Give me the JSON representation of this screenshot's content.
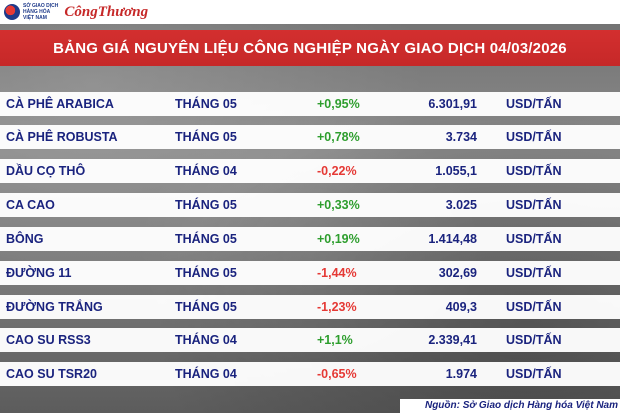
{
  "header": {
    "logo_org_lines": [
      "SỞ GIAO DỊCH",
      "HÀNG HÓA",
      "VIỆT NAM"
    ],
    "logo_brand": "CôngThương"
  },
  "title": "BẢNG GIÁ NGUYÊN LIỆU CÔNG NGHIỆP NGÀY GIAO DỊCH 04/03/2026",
  "rows": [
    {
      "name": "CÀ PHÊ ARABICA",
      "month": "THÁNG 05",
      "change": "+0,95%",
      "direction": "up",
      "price": "6.301,91",
      "unit": "USD/TẤN"
    },
    {
      "name": "CÀ PHÊ ROBUSTA",
      "month": "THÁNG 05",
      "change": "+0,78%",
      "direction": "up",
      "price": "3.734",
      "unit": "USD/TẤN"
    },
    {
      "name": "DẦU CỌ THÔ",
      "month": "THÁNG 04",
      "change": "-0,22%",
      "direction": "down",
      "price": "1.055,1",
      "unit": "USD/TẤN"
    },
    {
      "name": "CA CAO",
      "month": "THÁNG 05",
      "change": "+0,33%",
      "direction": "up",
      "price": "3.025",
      "unit": "USD/TẤN"
    },
    {
      "name": "BÔNG",
      "month": "THÁNG 05",
      "change": "+0,19%",
      "direction": "up",
      "price": "1.414,48",
      "unit": "USD/TẤN"
    },
    {
      "name": "ĐƯỜNG 11",
      "month": "THÁNG 05",
      "change": "-1,44%",
      "direction": "down",
      "price": "302,69",
      "unit": "USD/TẤN"
    },
    {
      "name": "ĐƯỜNG TRẮNG",
      "month": "THÁNG 05",
      "change": "-1,23%",
      "direction": "down",
      "price": "409,3",
      "unit": "USD/TẤN"
    },
    {
      "name": "CAO SU RSS3",
      "month": "THÁNG 04",
      "change": "+1,1%",
      "direction": "up",
      "price": "2.339,41",
      "unit": "USD/TẤN"
    },
    {
      "name": "CAO SU TSR20",
      "month": "THÁNG 04",
      "change": "-0,65%",
      "direction": "down",
      "price": "1.974",
      "unit": "USD/TẤN"
    }
  ],
  "source": "Nguồn: Sở Giao dịch Hàng hóa Việt Nam",
  "colors": {
    "up": "#2e9e2e",
    "down": "#e53935",
    "title_bg": "#c62828",
    "text": "#1a237e"
  }
}
